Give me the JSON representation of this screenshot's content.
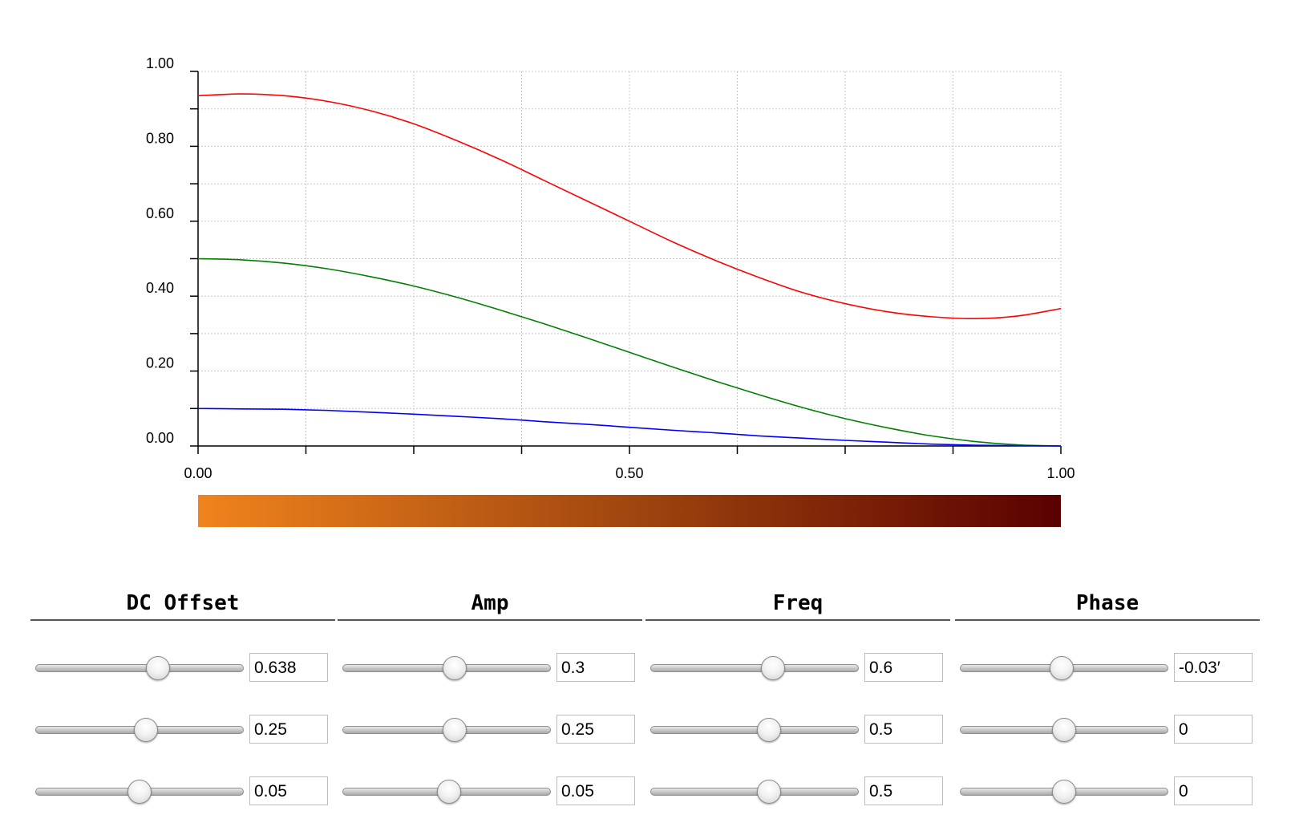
{
  "chart_data": {
    "type": "line",
    "x_range": [
      0,
      1
    ],
    "y_range": [
      0,
      1
    ],
    "x_ticks": [
      "0.00",
      "0.50",
      "1.00"
    ],
    "y_ticks": [
      "0.00",
      "0.20",
      "0.40",
      "0.60",
      "0.80",
      "1.00"
    ],
    "grid": true,
    "series": [
      {
        "color": "#ff0000",
        "x": [
          0,
          0.05,
          0.1,
          0.15,
          0.2,
          0.25,
          0.3,
          0.35,
          0.4,
          0.45,
          0.5,
          0.55,
          0.6,
          0.65,
          0.7,
          0.75,
          0.8,
          0.85,
          0.9,
          0.95,
          1.0
        ],
        "y": [
          0.935,
          0.94,
          0.935,
          0.92,
          0.895,
          0.86,
          0.815,
          0.765,
          0.71,
          0.655,
          0.6,
          0.545,
          0.495,
          0.45,
          0.41,
          0.38,
          0.358,
          0.345,
          0.34,
          0.347,
          0.367
        ]
      },
      {
        "color": "#008000",
        "x": [
          0,
          0.05,
          0.1,
          0.15,
          0.2,
          0.25,
          0.3,
          0.35,
          0.4,
          0.45,
          0.5,
          0.55,
          0.6,
          0.65,
          0.7,
          0.75,
          0.8,
          0.85,
          0.9,
          0.95,
          1.0
        ],
        "y": [
          0.5,
          0.497,
          0.488,
          0.473,
          0.452,
          0.427,
          0.397,
          0.363,
          0.327,
          0.289,
          0.25,
          0.211,
          0.173,
          0.137,
          0.103,
          0.073,
          0.048,
          0.027,
          0.012,
          0.003,
          0.0
        ]
      },
      {
        "color": "#0000ff",
        "x": [
          0,
          0.05,
          0.1,
          0.15,
          0.2,
          0.25,
          0.3,
          0.35,
          0.4,
          0.45,
          0.5,
          0.55,
          0.6,
          0.65,
          0.7,
          0.75,
          0.8,
          0.85,
          0.9,
          0.95,
          1.0
        ],
        "y": [
          0.1,
          0.099,
          0.098,
          0.095,
          0.09,
          0.085,
          0.079,
          0.073,
          0.065,
          0.058,
          0.05,
          0.042,
          0.035,
          0.027,
          0.021,
          0.015,
          0.01,
          0.005,
          0.002,
          0.001,
          0.0
        ]
      }
    ]
  },
  "gradient": {
    "start_color": "#f0831c",
    "mid_color": "#a0460f",
    "end_color": "#5a0000"
  },
  "controls": [
    {
      "title": "DC Offset",
      "rows": [
        {
          "value": "0.638",
          "level": 0.59
        },
        {
          "value": "0.25",
          "level": 0.53
        },
        {
          "value": "0.05",
          "level": 0.5
        }
      ]
    },
    {
      "title": "Amp",
      "rows": [
        {
          "value": "0.3",
          "level": 0.54
        },
        {
          "value": "0.25",
          "level": 0.54
        },
        {
          "value": "0.05",
          "level": 0.51
        }
      ]
    },
    {
      "title": "Freq",
      "rows": [
        {
          "value": "0.6",
          "level": 0.59
        },
        {
          "value": "0.5",
          "level": 0.57
        },
        {
          "value": "0.5",
          "level": 0.57
        }
      ]
    },
    {
      "title": "Phase",
      "rows": [
        {
          "value": "-0.03′",
          "level": 0.49
        },
        {
          "value": "0",
          "level": 0.5
        },
        {
          "value": "0",
          "level": 0.5
        }
      ]
    }
  ]
}
